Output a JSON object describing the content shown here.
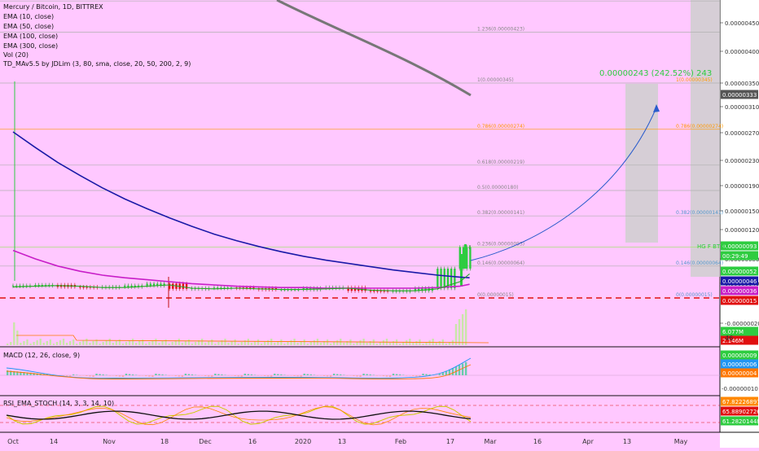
{
  "header": {
    "title": "Mercury / Bitcoin, 1D, BITTREX",
    "indicators": [
      "EMA (10, close)",
      "EMA (50, close)",
      "EMA (100, close)",
      "EMA (300, close)",
      "Vol (20)",
      "TD_MAv5.5 by JDLim (3, 80, sma, close, 20, 50, 200, 2, 9)"
    ]
  },
  "colors": {
    "background": "#ffc8ff",
    "ema300": "#777777",
    "ema100": "#1a1aa8",
    "ema50": "#c81ec8",
    "ema10": "#22aa22",
    "fib": "#b0b0b0",
    "fib786": "#ff9900",
    "target": "#2ecc40",
    "red_line": "#e01010",
    "projection": "#2a5ccc",
    "macd": "#2196f3",
    "signal": "#ff7700",
    "rsi": "#111111",
    "stoch_k": "#cccc00",
    "stoch_d": "#ff8800"
  },
  "price_axis": {
    "ticks": [
      "0.00000450",
      "0.00000400",
      "0.00000350",
      "0.00000310",
      "0.00000270",
      "0.00000230",
      "0.00000190",
      "0.00000150",
      "0.00000120",
      "0.00000080",
      "0.00000040",
      "-0.00000020"
    ],
    "badges": [
      {
        "text": "0.00000333",
        "bg": "#555555",
        "fg": "#ffffff"
      },
      {
        "text": "0.00000093",
        "bg": "#2ecc40",
        "fg": "#ffffff"
      },
      {
        "text": "00:29:49",
        "bg": "#2ecc40",
        "fg": "#ffffff"
      },
      {
        "text": "0.00000052",
        "bg": "#2ecc40",
        "fg": "#ffffff"
      },
      {
        "text": "0.00000046",
        "bg": "#1a1aa8",
        "fg": "#ffffff"
      },
      {
        "text": "0.00000036",
        "bg": "#c81ec8",
        "fg": "#ffffff"
      },
      {
        "text": "0.00000015",
        "bg": "#e01010",
        "fg": "#ffffff"
      },
      {
        "text": "6.077M",
        "bg": "#2ecc40",
        "fg": "#ffffff"
      },
      {
        "text": "2.146M",
        "bg": "#e01010",
        "fg": "#ffffff"
      }
    ],
    "ticks_low": "46"
  },
  "fib_levels": [
    {
      "label": "1.382(0.00000471)",
      "v": 471
    },
    {
      "label": "1.236(0.00000423)",
      "v": 423
    },
    {
      "label": "1(0.00000345)",
      "v": 345
    },
    {
      "label": "0.786(0.00000274)",
      "v": 274
    },
    {
      "label": "0.618(0.00000219)",
      "v": 219
    },
    {
      "label": "0.5(0.00000180)",
      "v": 180
    },
    {
      "label": "0.382(0.00000141)",
      "v": 141
    },
    {
      "label": "0.236(0.00000093)",
      "v": 93
    },
    {
      "label": "0.146(0.00000064)",
      "v": 64
    },
    {
      "label": "0(0.00000015)",
      "v": 15
    }
  ],
  "fib_right_labels": [
    {
      "label": "1(0.00000345)",
      "v": 345
    },
    {
      "label": "0.786(0.00000274)",
      "v": 274
    },
    {
      "label": "0.382(0.00000141)",
      "v": 141
    },
    {
      "label": "0.146(0.00000064)",
      "v": 64
    },
    {
      "label": "0(0.00000015)",
      "v": 15
    }
  ],
  "fib_tag_right": "HG F BT C",
  "target_label": "0.00000243 (242.52%) 243",
  "macd": {
    "title": "MACD (12, 26, close, 9)",
    "ticks": [
      "-0.00000010"
    ],
    "badges": [
      {
        "text": "0.00000009",
        "bg": "#2ecc40",
        "fg": "#ffffff"
      },
      {
        "text": "0.00000006",
        "bg": "#2196f3",
        "fg": "#ffffff"
      },
      {
        "text": "0.00000004",
        "bg": "#ff7700",
        "fg": "#ffffff"
      }
    ]
  },
  "rsi": {
    "title": "RSI_EMA_STOCH (14, 3, 3, 14, 10)",
    "badges": [
      {
        "text": "67.82226897",
        "bg": "#ff8800",
        "fg": "#ffffff"
      },
      {
        "text": "65.88902726",
        "bg": "#e01010",
        "fg": "#ffffff"
      },
      {
        "text": "61.28201448",
        "bg": "#2ecc40",
        "fg": "#ffffff"
      }
    ]
  },
  "time_axis": {
    "labels": [
      "Oct",
      "14",
      "Nov",
      "18",
      "Dec",
      "16",
      "2020",
      "13",
      "Feb",
      "17",
      "Mar",
      "16",
      "Apr",
      "13",
      "May"
    ]
  },
  "chart_data": {
    "type": "line",
    "x": [
      "2019-10-01",
      "2019-10-08",
      "2019-10-15",
      "2019-10-22",
      "2019-10-29",
      "2019-11-05",
      "2019-11-12",
      "2019-11-19",
      "2019-11-26",
      "2019-12-03",
      "2019-12-10",
      "2019-12-17",
      "2019-12-24",
      "2019-12-31",
      "2020-01-07",
      "2020-01-14",
      "2020-01-21",
      "2020-01-28",
      "2020-02-04",
      "2020-02-11",
      "2020-02-18",
      "2020-02-21"
    ],
    "series": [
      {
        "key": "ema300",
        "values": [
          null,
          null,
          null,
          null,
          null,
          null,
          null,
          null,
          null,
          null,
          null,
          null,
          null,
          null,
          null,
          null,
          null,
          null,
          null,
          null,
          null,
          null
        ]
      },
      {
        "key": "ema100",
        "values": [
          270,
          246,
          223,
          203,
          184,
          167,
          152,
          138,
          125,
          113,
          103,
          94,
          86,
          79,
          73,
          68,
          63,
          58,
          54,
          50,
          47,
          46
        ]
      },
      {
        "key": "ema50",
        "values": [
          88,
          75,
          64,
          56,
          50,
          46,
          43,
          40,
          37,
          35,
          33,
          32,
          31,
          31,
          30,
          30,
          30,
          30,
          30,
          31,
          33,
          36
        ]
      },
      {
        "key": "ema10",
        "values": [
          32,
          33,
          34,
          33,
          31,
          31,
          33,
          35,
          30,
          29,
          30,
          29,
          28,
          28,
          29,
          30,
          27,
          26,
          26,
          29,
          40,
          52
        ]
      },
      {
        "key": "close",
        "values": [
          33,
          34,
          35,
          32,
          31,
          32,
          34,
          37,
          29,
          30,
          31,
          30,
          28,
          28,
          30,
          31,
          26,
          25,
          26,
          30,
          60,
          93
        ]
      }
    ],
    "ema300_overlay": [
      {
        "x": "2019-12-10",
        "y": 520
      },
      {
        "x": "2020-01-14",
        "y": 470
      },
      {
        "x": "2020-02-04",
        "y": 400
      },
      {
        "x": "2020-02-21",
        "y": 333
      }
    ],
    "current_price": 93,
    "ylim": [
      -20,
      480
    ]
  }
}
